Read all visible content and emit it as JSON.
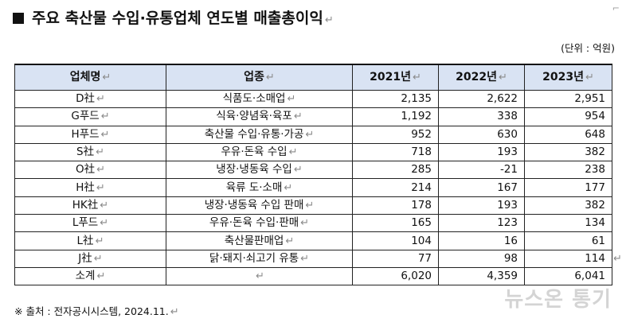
{
  "title": "주요 축산물 수입·유통업체 연도별 매출총이익",
  "unit": "(단위 : 억원)",
  "return_mark": "↵",
  "headers": [
    "업체명",
    "업종",
    "2021년",
    "2022년",
    "2023년"
  ],
  "rows": [
    {
      "name": "D社",
      "industry": "식품도·소매업",
      "y2021": "2,135",
      "y2022": "2,622",
      "y2023": "2,951"
    },
    {
      "name": "G푸드",
      "industry": "식육·양념육·육포",
      "y2021": "1,192",
      "y2022": "338",
      "y2023": "954"
    },
    {
      "name": "H푸드",
      "industry": "축산물 수입·유통·가공",
      "y2021": "952",
      "y2022": "630",
      "y2023": "648"
    },
    {
      "name": "S社",
      "industry": "우유·돈육 수입",
      "y2021": "718",
      "y2022": "193",
      "y2023": "382"
    },
    {
      "name": "O社",
      "industry": "냉장·냉동육 수입",
      "y2021": "285",
      "y2022": "-21",
      "y2023": "238"
    },
    {
      "name": "H社",
      "industry": "육류 도·소매",
      "y2021": "214",
      "y2022": "167",
      "y2023": "177"
    },
    {
      "name": "HK社",
      "industry": "냉장·냉동육 수입 판매",
      "y2021": "178",
      "y2022": "193",
      "y2023": "382"
    },
    {
      "name": "L푸드",
      "industry": "우유·돈육 수입·판매",
      "y2021": "165",
      "y2022": "123",
      "y2023": "134"
    },
    {
      "name": "L社",
      "industry": "축산물판매업",
      "y2021": "104",
      "y2022": "16",
      "y2023": "61"
    },
    {
      "name": "J社",
      "industry": "닭·돼지·쇠고기 유통",
      "y2021": "77",
      "y2022": "98",
      "y2023": "114"
    },
    {
      "name": "소계",
      "industry": "",
      "y2021": "6,020",
      "y2022": "4,359",
      "y2023": "6,041"
    }
  ],
  "source": "※ 출처 : 전자공시시스템, 2024.11.",
  "watermark": "뉴스온 통기"
}
